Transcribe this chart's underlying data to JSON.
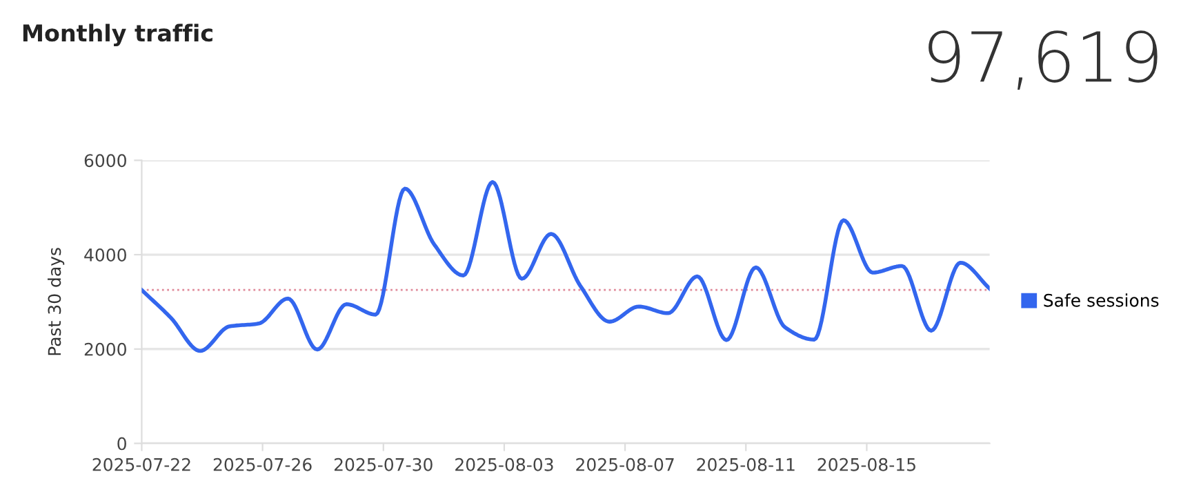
{
  "chart_data": {
    "type": "line",
    "title": "Monthly traffic",
    "ylabel": "Past 30 days",
    "annotations": [
      "97,619"
    ],
    "x": [
      "2025-07-22T00:00",
      "2025-07-22T23:14",
      "2025-07-23T22:28",
      "2025-07-24T21:41",
      "2025-07-25T20:55",
      "2025-07-26T20:09",
      "2025-07-27T19:23",
      "2025-07-28T18:37",
      "2025-07-29T17:50",
      "2025-07-30T17:04",
      "2025-07-31T16:18",
      "2025-08-01T15:32",
      "2025-08-02T14:46",
      "2025-08-03T13:59",
      "2025-08-04T13:13",
      "2025-08-05T12:27",
      "2025-08-06T11:41",
      "2025-08-07T10:55",
      "2025-08-08T10:08",
      "2025-08-09T09:22",
      "2025-08-10T08:36",
      "2025-08-11T07:50",
      "2025-08-12T07:04",
      "2025-08-13T06:17",
      "2025-08-14T05:31",
      "2025-08-15T04:45",
      "2025-08-16T03:59",
      "2025-08-17T03:13",
      "2025-08-18T02:26",
      "2025-08-19T01:40"
    ],
    "series": [
      {
        "name": "Safe sessions",
        "color": "#3366ee",
        "values": [
          3250,
          2660,
          1960,
          2480,
          2540,
          3070,
          1990,
          2950,
          2730,
          5400,
          4220,
          3560,
          5540,
          3490,
          4440,
          3340,
          2580,
          2900,
          2760,
          3540,
          2190,
          3730,
          2460,
          2200,
          4730,
          3620,
          3760,
          2390,
          3830,
          3280
        ]
      }
    ],
    "xlim": [
      "2025-07-22T00:00",
      "2025-08-19T01:40"
    ],
    "xticks": [
      "2025-07-22",
      "2025-07-26",
      "2025-07-30",
      "2025-08-03",
      "2025-08-07",
      "2025-08-11",
      "2025-08-15"
    ],
    "ylim": [
      0,
      6000
    ],
    "yticks": [
      0,
      2000,
      4000,
      6000
    ],
    "ref_lines": [
      {
        "axis": "y",
        "value": 3254,
        "label": null,
        "color": "#e08a9a",
        "line_style": "dotted"
      }
    ],
    "grid": "y",
    "legend": "right",
    "marker": "none",
    "line_style": "solid"
  }
}
